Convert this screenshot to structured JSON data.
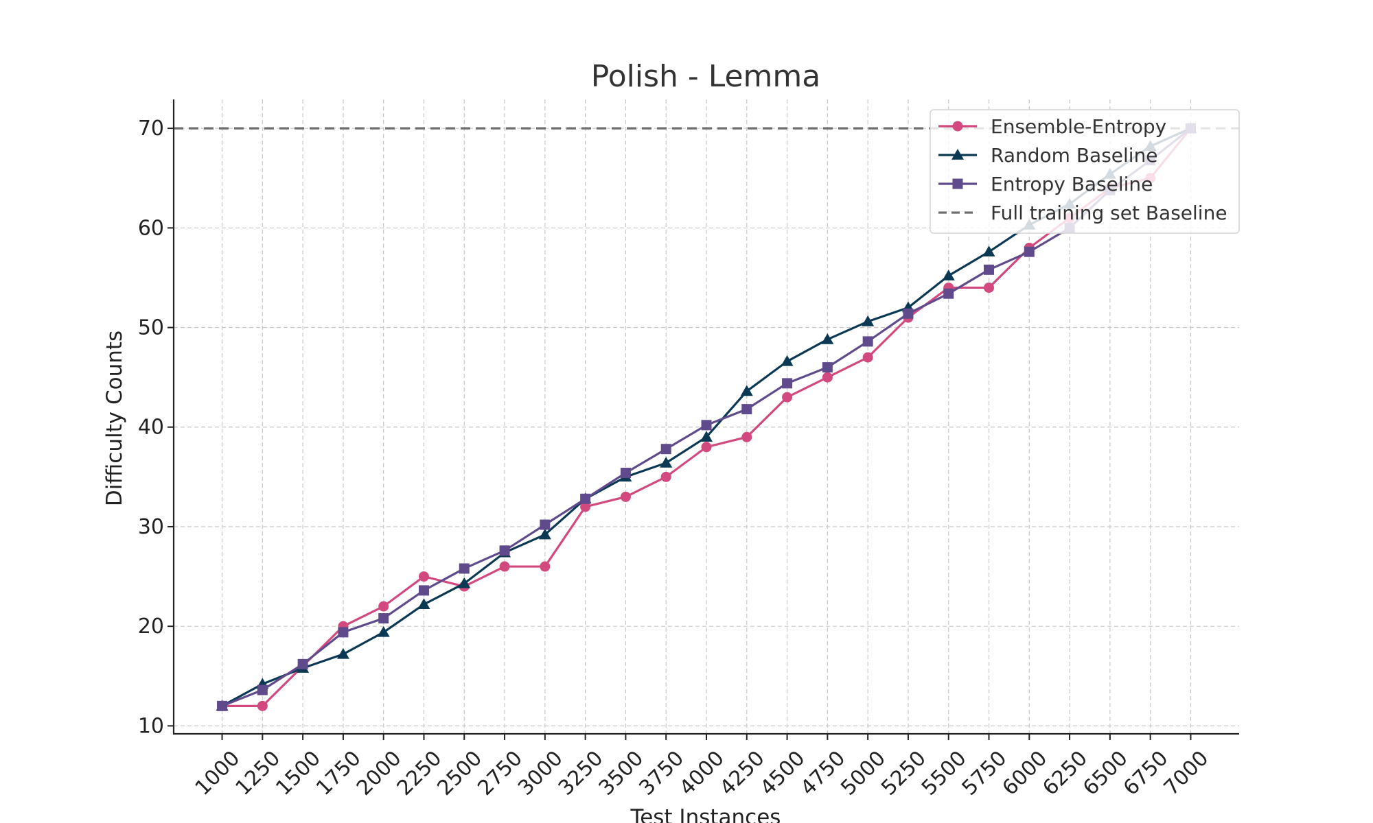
{
  "chart_data": {
    "type": "line",
    "title": "Polish - Lemma",
    "xlabel": "Test Instances",
    "ylabel": "Difficulty Counts",
    "x": [
      1000,
      1250,
      1500,
      1750,
      2000,
      2250,
      2500,
      2750,
      3000,
      3250,
      3500,
      3750,
      4000,
      4250,
      4500,
      4750,
      5000,
      5250,
      5500,
      5750,
      6000,
      6250,
      6500,
      6750,
      7000
    ],
    "x_tick_labels": [
      "1000",
      "1250",
      "1500",
      "1750",
      "2000",
      "2250",
      "2500",
      "2750",
      "3000",
      "3250",
      "3500",
      "3750",
      "4000",
      "4250",
      "4500",
      "4750",
      "5000",
      "5250",
      "5500",
      "5750",
      "6000",
      "6250",
      "6500",
      "6750",
      "7000"
    ],
    "y_ticks": [
      10,
      20,
      30,
      40,
      50,
      60,
      70
    ],
    "y_tick_labels": [
      "10",
      "20",
      "30",
      "40",
      "50",
      "60",
      "70"
    ],
    "xlim": [
      700,
      7300
    ],
    "ylim": [
      9.2,
      72.9
    ],
    "grid": true,
    "legend_position": "top-right",
    "series": [
      {
        "name": "Ensemble-Entropy",
        "color": "#d1497e",
        "marker": "circle",
        "values": [
          12,
          12,
          16,
          20,
          22,
          25,
          24,
          26,
          26,
          32,
          33,
          35,
          38,
          39,
          43,
          45,
          47,
          51,
          54,
          54,
          58,
          61,
          64,
          65,
          70
        ]
      },
      {
        "name": "Random Baseline",
        "color": "#0b3954",
        "marker": "triangle",
        "values": [
          12,
          14.2,
          15.8,
          17.2,
          19.4,
          22.2,
          24.3,
          27.4,
          29.2,
          32.8,
          35,
          36.4,
          39,
          43.6,
          46.6,
          48.8,
          50.6,
          52,
          55.2,
          57.6,
          60.3,
          62.4,
          65.4,
          68.2,
          70
        ]
      },
      {
        "name": "Entropy Baseline",
        "color": "#5f4b8b",
        "marker": "square",
        "values": [
          12,
          13.6,
          16.2,
          19.4,
          20.8,
          23.6,
          25.8,
          27.6,
          30.2,
          32.8,
          35.4,
          37.8,
          40.2,
          41.8,
          44.4,
          46,
          48.6,
          51.4,
          53.4,
          55.8,
          57.6,
          60,
          63.8,
          66.8,
          70
        ]
      },
      {
        "name": "Full training set Baseline",
        "color": "#6e6e6e",
        "marker": "none",
        "line_style": "dashed",
        "constant": 70
      }
    ]
  }
}
